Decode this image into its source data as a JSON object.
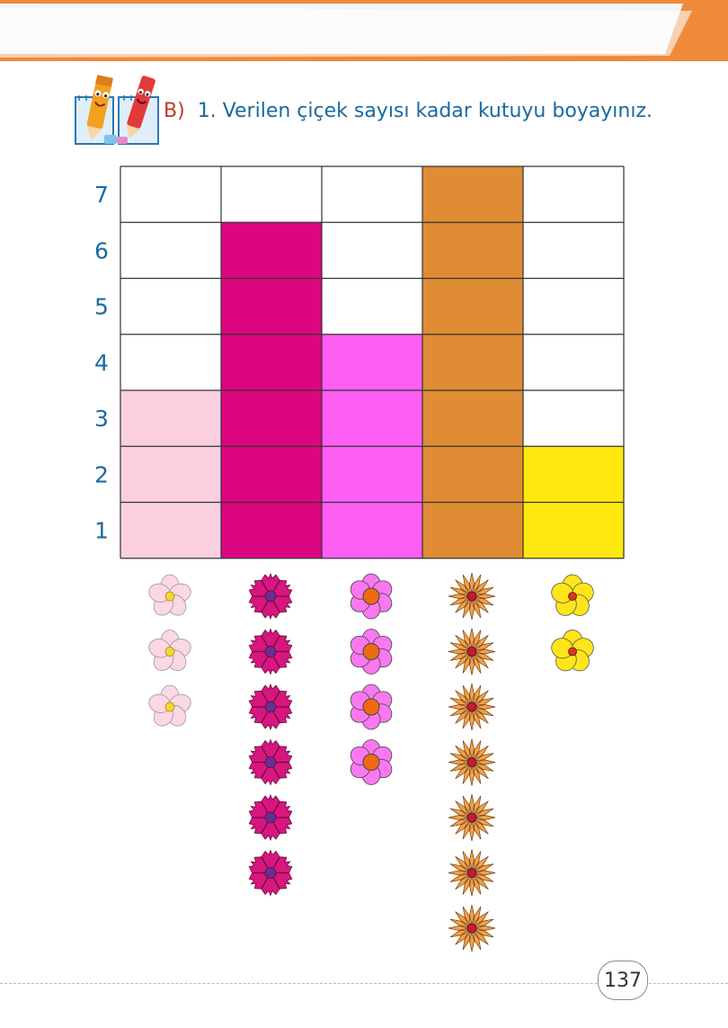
{
  "header": {
    "section_label": "B)",
    "instruction": "1. Verilen çiçek sayısı kadar kutuyu boyayınız."
  },
  "chart_data": {
    "type": "bar",
    "categories": [
      "",
      "",
      "",
      "",
      ""
    ],
    "values": [
      3,
      6,
      4,
      7,
      2
    ],
    "colors": [
      "#fbcfdf",
      "#dc0780",
      "#ff5ef5",
      "#e08c35",
      "#ffe80f"
    ],
    "flower_icons": [
      "pale-pink-flower",
      "magenta-carnation",
      "pink-flower-orange-center",
      "orange-star-flower",
      "yellow-flower"
    ],
    "ylim": [
      0,
      7
    ],
    "yticks": [
      "1",
      "2",
      "3",
      "4",
      "5",
      "6",
      "7"
    ],
    "grid": true
  },
  "footer": {
    "page_number": "137"
  }
}
